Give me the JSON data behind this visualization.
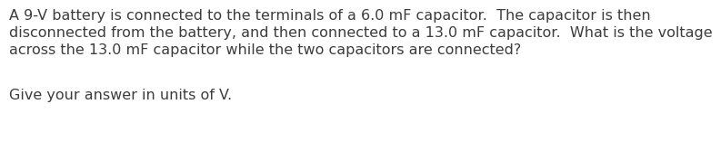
{
  "background_color": "#ffffff",
  "text_color": "#3d3d3d",
  "line1": "A 9-V battery is connected to the terminals of a 6.0 mF capacitor.  The capacitor is then",
  "line2": "disconnected from the battery, and then connected to a 13.0 mF capacitor.  What is the voltage",
  "line3": "across the 13.0 mF capacitor while the two capacitors are connected?",
  "line4": "Give your answer in units of V.",
  "font_size": 11.5,
  "font_family": "DejaVu Sans"
}
